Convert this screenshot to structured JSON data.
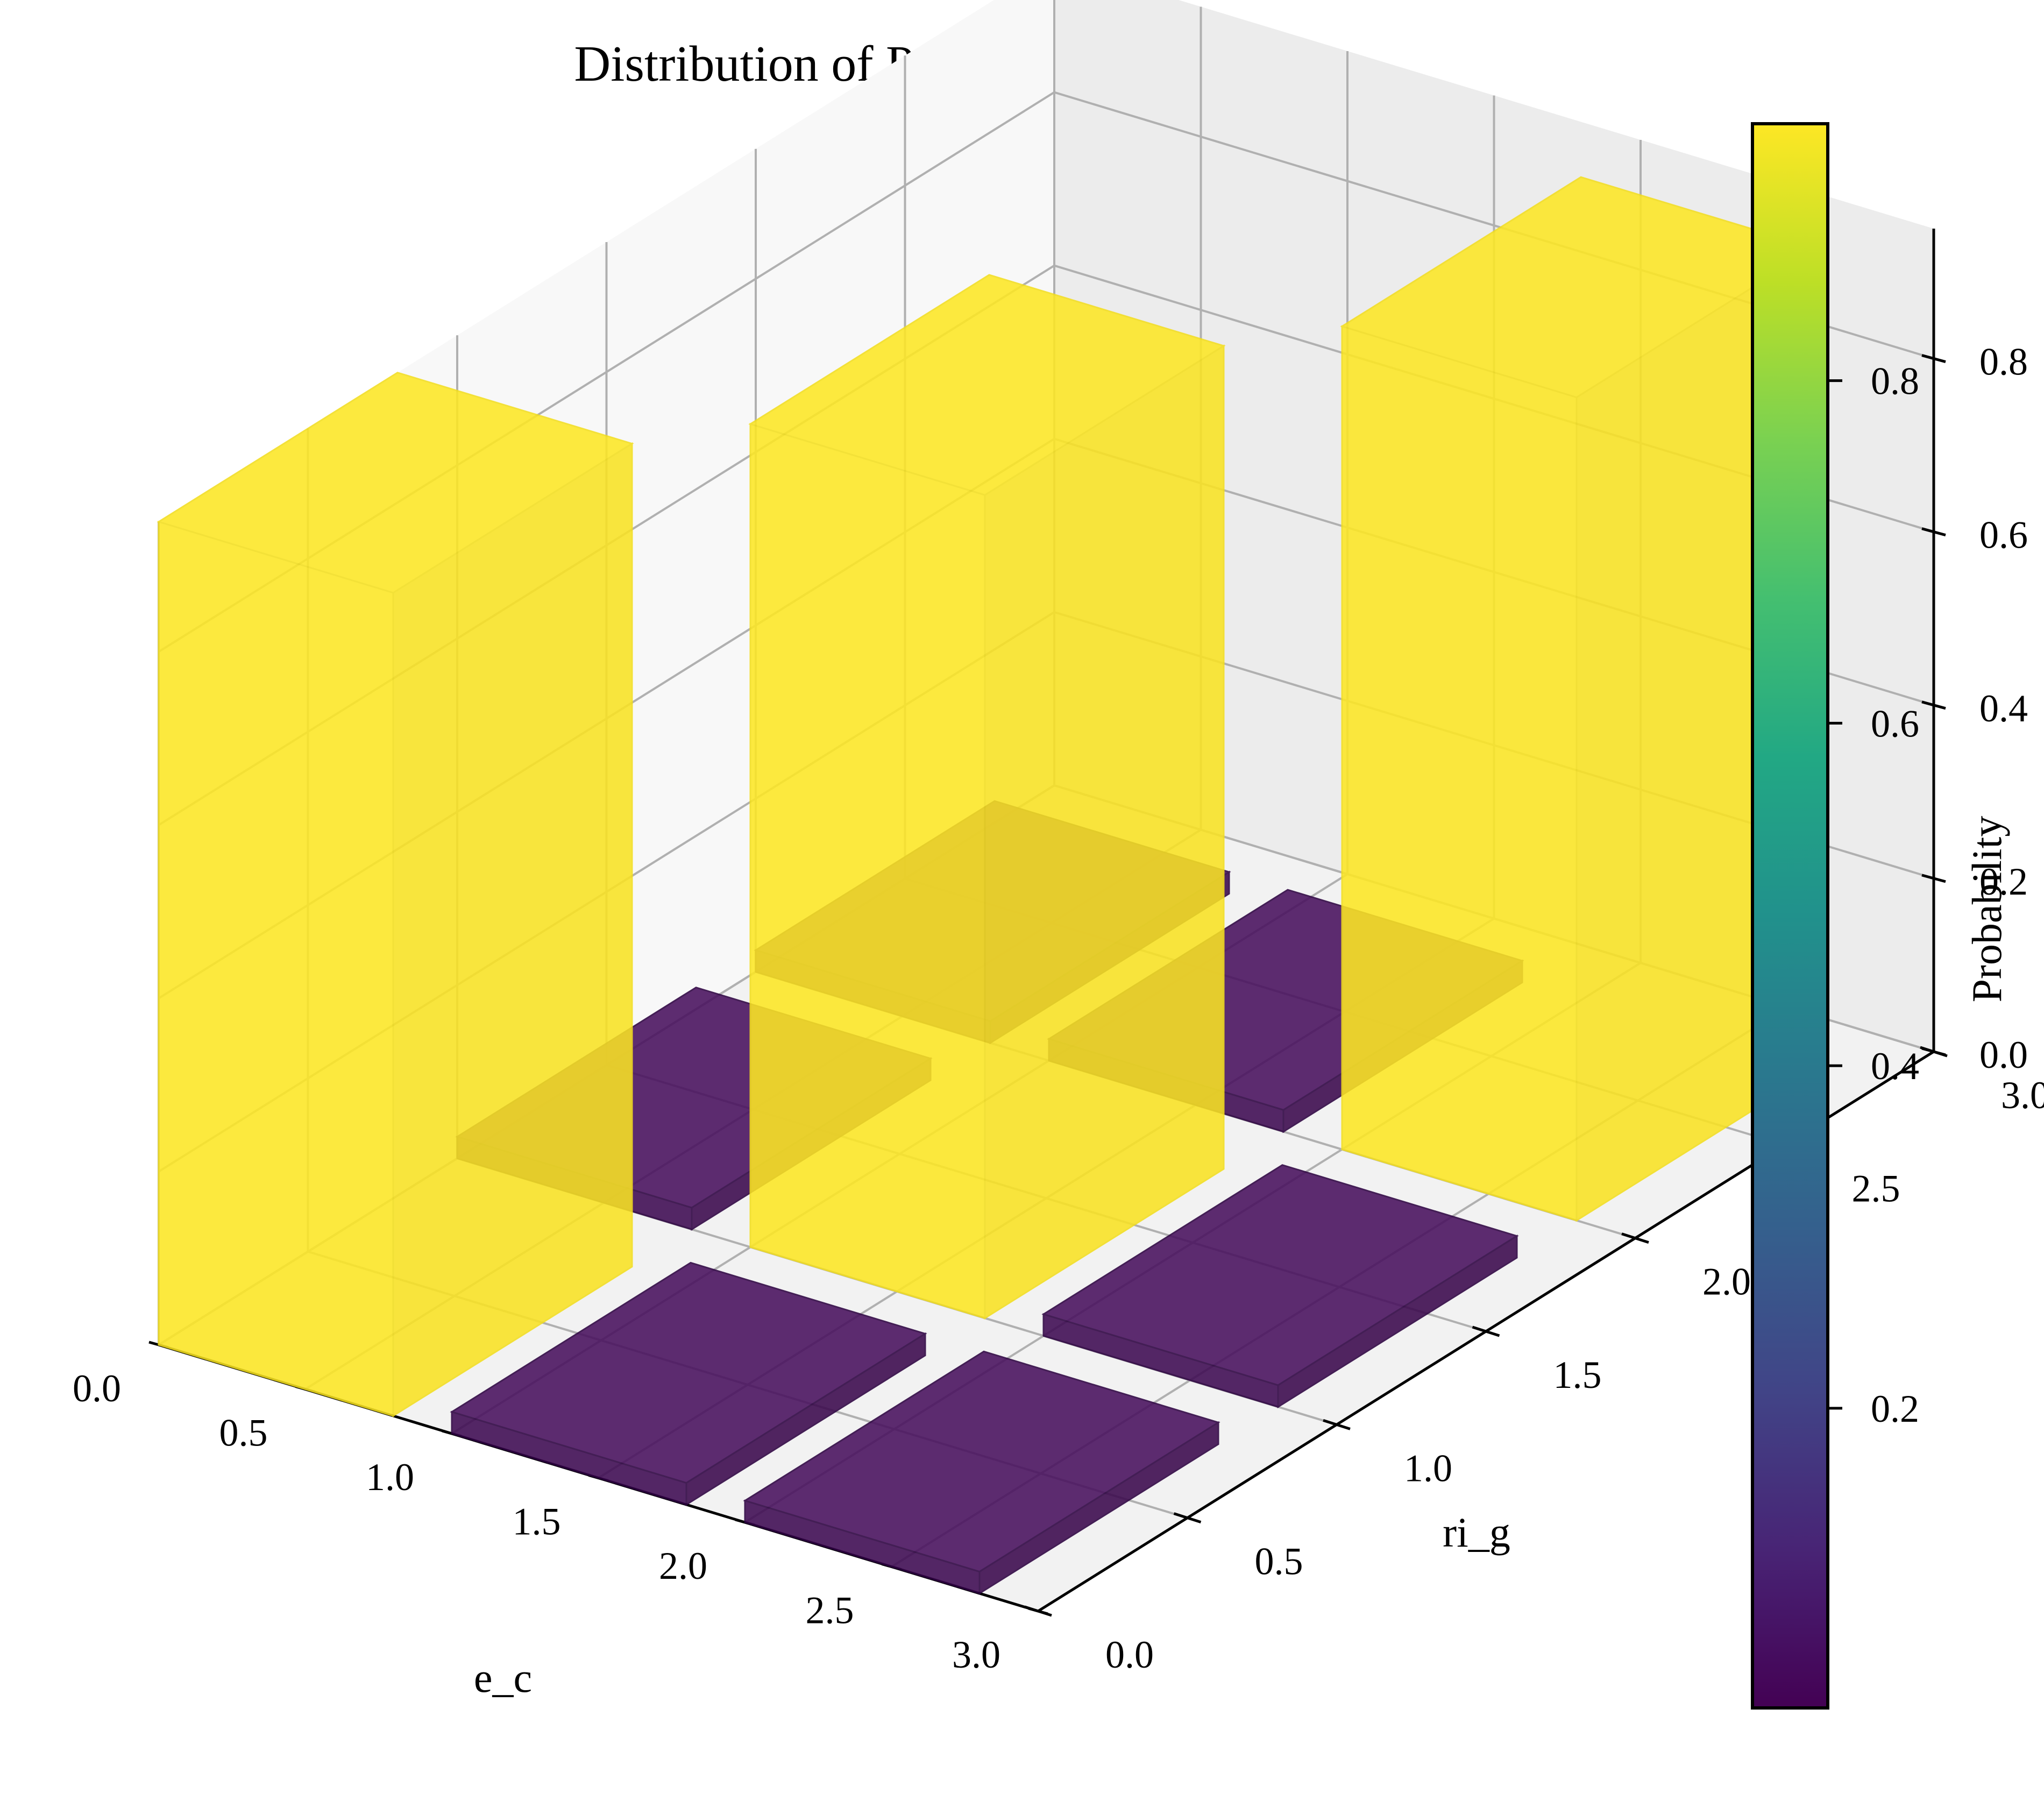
{
  "chart_data": {
    "type": "bar3d",
    "title": "Distribution of P(ri_g|e_c)",
    "xlabel": "e_c",
    "ylabel": "ri_g",
    "zlabel": "",
    "x_ticks": [
      "0.0",
      "0.5",
      "1.0",
      "1.5",
      "2.0",
      "2.5",
      "3.0"
    ],
    "y_ticks": [
      "0.0",
      "0.5",
      "1.0",
      "1.5",
      "2.0",
      "2.5",
      "3.0"
    ],
    "z_ticks": [
      "0.0",
      "0.2",
      "0.4",
      "0.6",
      "0.8"
    ],
    "xlim": [
      0,
      3
    ],
    "ylim": [
      0,
      3
    ],
    "zlim": [
      0,
      0.95
    ],
    "grid": true,
    "colormap": "viridis",
    "colorbar": {
      "label": "Probability",
      "ticks": [
        "0.2",
        "0.4",
        "0.6",
        "0.8"
      ],
      "range": [
        0.025,
        0.95
      ]
    },
    "bars": [
      {
        "e_c": 0,
        "ri_g": 0,
        "value": 0.95
      },
      {
        "e_c": 0,
        "ri_g": 1,
        "value": 0.025
      },
      {
        "e_c": 0,
        "ri_g": 2,
        "value": 0.025
      },
      {
        "e_c": 1,
        "ri_g": 0,
        "value": 0.025
      },
      {
        "e_c": 1,
        "ri_g": 1,
        "value": 0.95
      },
      {
        "e_c": 1,
        "ri_g": 2,
        "value": 0.025
      },
      {
        "e_c": 2,
        "ri_g": 0,
        "value": 0.025
      },
      {
        "e_c": 2,
        "ri_g": 1,
        "value": 0.025
      },
      {
        "e_c": 2,
        "ri_g": 2,
        "value": 0.95
      }
    ],
    "colors": {
      "high": "#fde725",
      "low": "#440154"
    }
  }
}
